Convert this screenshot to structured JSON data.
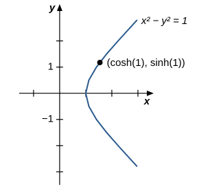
{
  "chart_data": {
    "type": "line",
    "x_label": "x",
    "y_label": "y",
    "x": [
      2.97,
      2.24,
      1.8,
      1.41,
      1.12,
      1,
      1.12,
      1.41,
      1.8,
      2.24,
      2.97
    ],
    "series": [
      {
        "name": "x² − y² = 1",
        "color": "#2b5b8e",
        "values": [
          -2.8,
          -2,
          -1.5,
          -1,
          -0.5,
          0,
          0.5,
          1,
          1.5,
          2,
          2.8
        ]
      }
    ],
    "point": {
      "x": 1.543,
      "y": 1.175,
      "label": "(cosh(1), sinh(1))",
      "color": "#000000"
    },
    "xlim": [
      -1.55,
      3.5
    ],
    "ylim": [
      -3.5,
      3.3
    ],
    "xticks": [
      {
        "value": -1,
        "label": null
      },
      {
        "value": 1,
        "label": null
      },
      {
        "value": 2,
        "label": null
      },
      {
        "value": 3,
        "label": null
      }
    ],
    "yticks": [
      {
        "value": 2,
        "label": null
      },
      {
        "value": 1,
        "label": "1"
      },
      {
        "value": -1,
        "label": "−1"
      },
      {
        "value": -2,
        "label": null
      },
      {
        "value": -3,
        "label": null
      }
    ],
    "grid": false
  }
}
